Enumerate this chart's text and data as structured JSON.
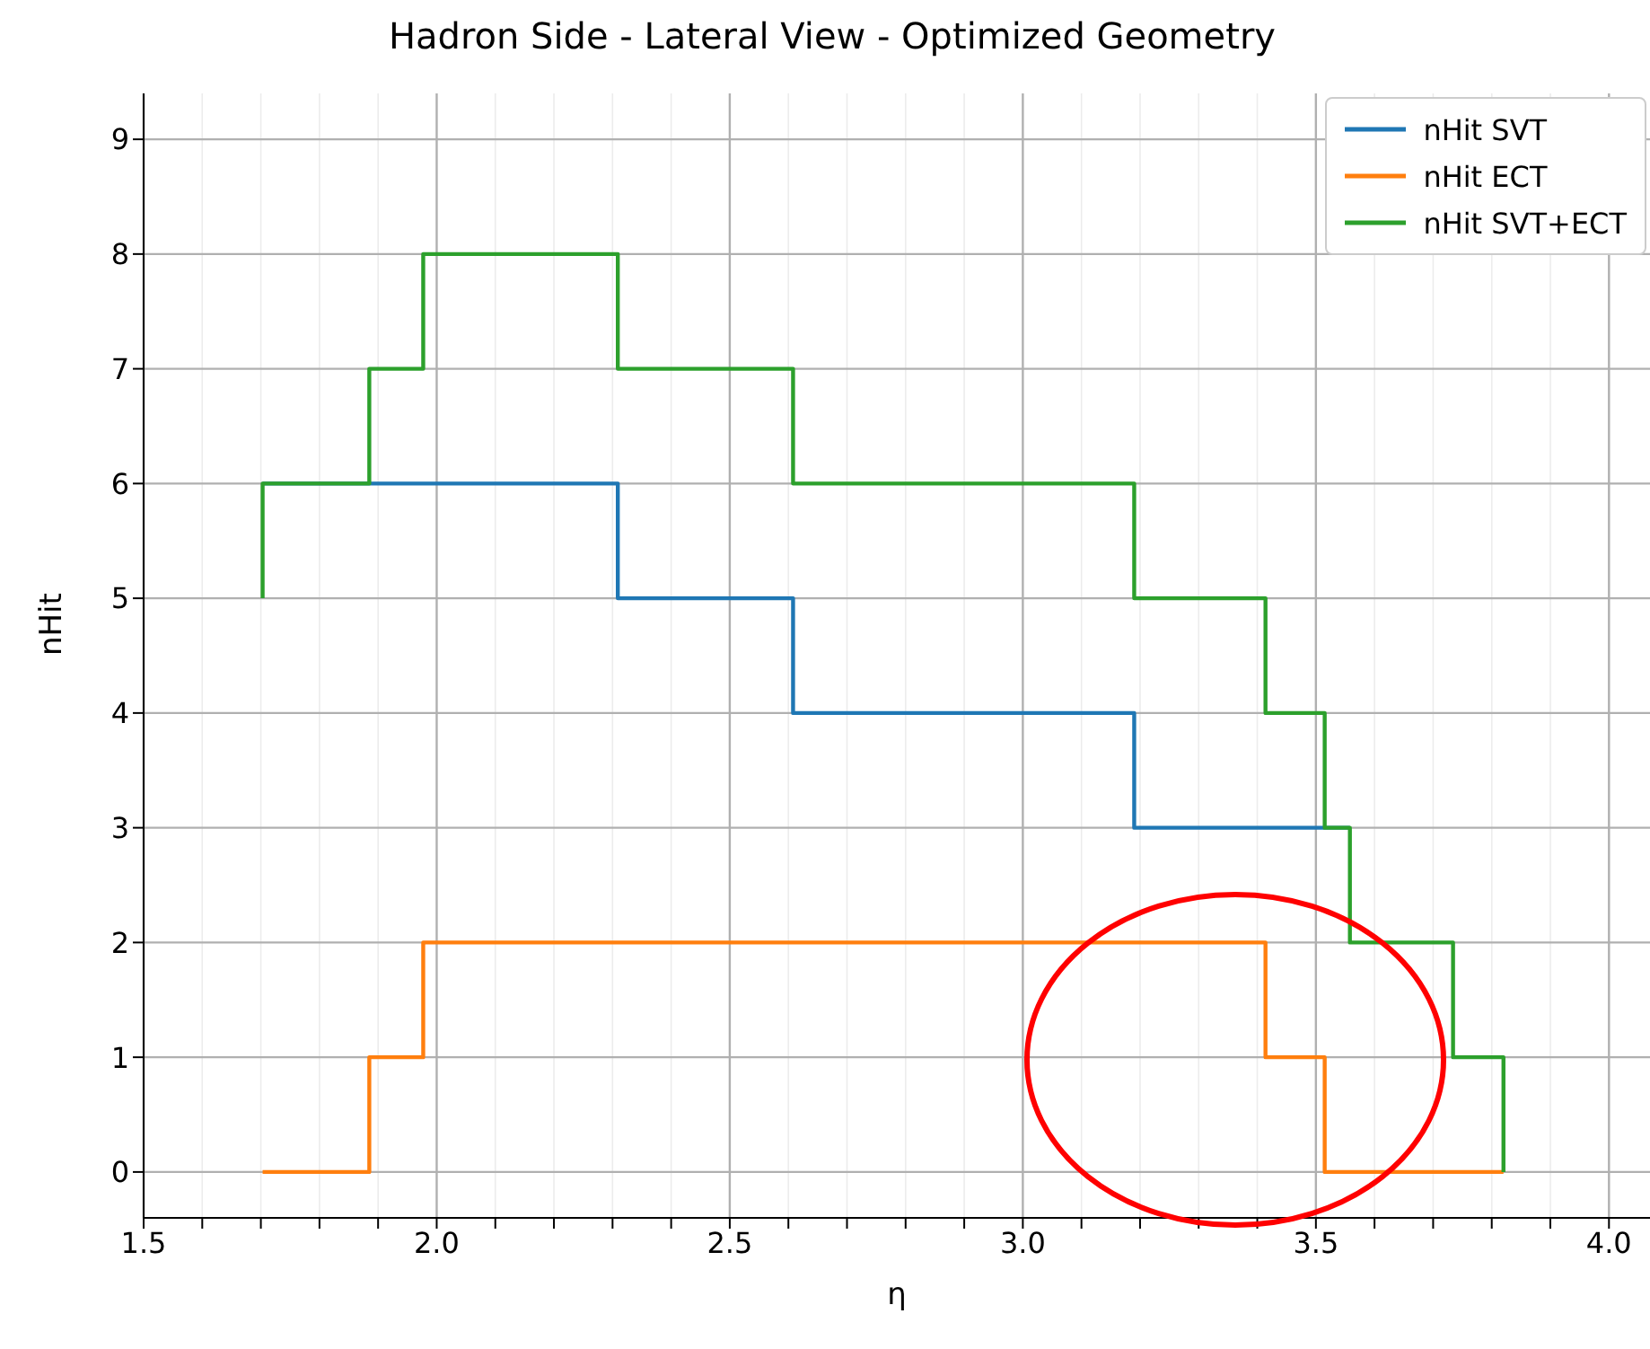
{
  "chart_data": {
    "type": "step",
    "title": "Hadron Side - Lateral View - Optimized Geometry",
    "xlabel": "η",
    "ylabel": "nHit",
    "series": [
      {
        "name": "nHit SVT",
        "color": "#1f77b4",
        "x": [
          1.703,
          2.309,
          2.608,
          3.19,
          3.558
        ],
        "values": [
          6,
          5,
          4,
          3,
          3
        ]
      },
      {
        "name": "nHit ECT",
        "color": "#ff7f0e",
        "x": [
          1.703,
          1.885,
          1.977,
          3.414,
          3.515,
          3.82
        ],
        "values": [
          0,
          1,
          2,
          1,
          0,
          0
        ]
      },
      {
        "name": "nHit SVT+ECT",
        "color": "#2ca02c",
        "x": [
          1.703,
          1.703,
          1.885,
          1.977,
          2.309,
          2.608,
          3.19,
          3.414,
          3.515,
          3.558,
          3.734,
          3.82
        ],
        "values": [
          5,
          6,
          7,
          8,
          7,
          6,
          5,
          4,
          3,
          2,
          1,
          0
        ]
      }
    ],
    "xlim": [
      1.5,
      4.07
    ],
    "ylim": [
      -0.4,
      9.4
    ],
    "xticks": [
      {
        "value": 1.5,
        "label": "1.5"
      },
      {
        "value": 1.6,
        "label": null
      },
      {
        "value": 1.7,
        "label": null
      },
      {
        "value": 1.8,
        "label": null
      },
      {
        "value": 1.9,
        "label": null
      },
      {
        "value": 2.0,
        "label": "2.0"
      },
      {
        "value": 2.1,
        "label": null
      },
      {
        "value": 2.2,
        "label": null
      },
      {
        "value": 2.3,
        "label": null
      },
      {
        "value": 2.4,
        "label": null
      },
      {
        "value": 2.5,
        "label": "2.5"
      },
      {
        "value": 2.6,
        "label": null
      },
      {
        "value": 2.7,
        "label": null
      },
      {
        "value": 2.8,
        "label": null
      },
      {
        "value": 2.9,
        "label": null
      },
      {
        "value": 3.0,
        "label": "3.0"
      },
      {
        "value": 3.1,
        "label": null
      },
      {
        "value": 3.2,
        "label": null
      },
      {
        "value": 3.3,
        "label": null
      },
      {
        "value": 3.4,
        "label": null
      },
      {
        "value": 3.5,
        "label": "3.5"
      },
      {
        "value": 3.6,
        "label": null
      },
      {
        "value": 3.7,
        "label": null
      },
      {
        "value": 3.8,
        "label": null
      },
      {
        "value": 3.9,
        "label": null
      },
      {
        "value": 4.0,
        "label": "4.0"
      }
    ],
    "yticks": [
      0,
      1,
      2,
      3,
      4,
      5,
      6,
      7,
      8,
      9
    ],
    "grid": true,
    "legend": "top right",
    "marker": "none",
    "line_style": "solid"
  }
}
